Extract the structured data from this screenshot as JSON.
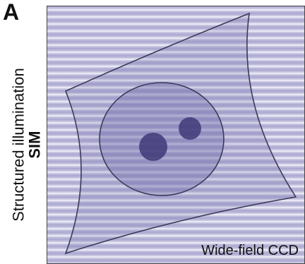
{
  "panel_letter": "A",
  "ylabel": {
    "main": "Structured illumination",
    "sub": "SIM"
  },
  "corner_label": "Wide-field CCD",
  "colors": {
    "stripe_dark": "#a9a7cf",
    "stripe_light": "#f4f3fa",
    "outline": "#3b3a5a",
    "nucleus_fill": "#6f6aa8",
    "nucleoli_fill": "#3f3a78"
  }
}
